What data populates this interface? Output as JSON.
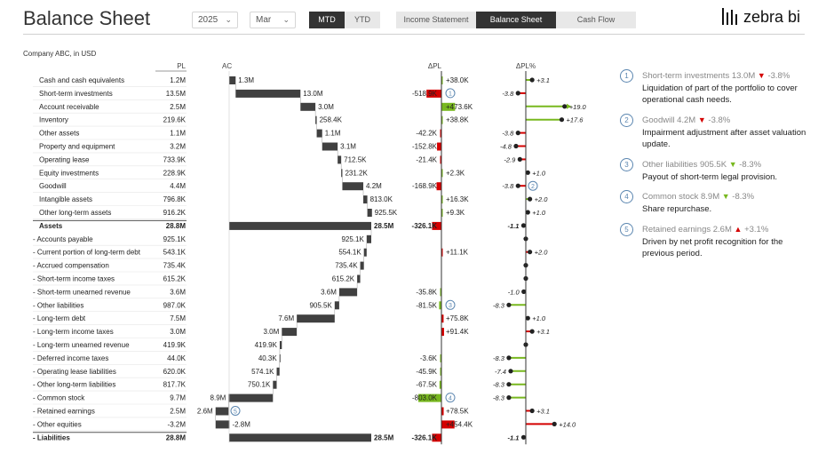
{
  "header": {
    "title": "Balance Sheet",
    "year": "2025",
    "month": "Mar",
    "period_buttons": [
      "MTD",
      "YTD"
    ],
    "period_active": "MTD",
    "report_tabs": [
      "Income Statement",
      "Balance Sheet",
      "Cash Flow"
    ],
    "report_active": "Balance Sheet",
    "logo_text": "zebra bi"
  },
  "subtitle": "Company ABC, in USD",
  "colors": {
    "bar": "#404040",
    "positive": "#78b81f",
    "negative": "#d40000",
    "comment": "#5b86b0"
  },
  "chart_data": {
    "type": "table",
    "columns": [
      "PL",
      "AC",
      "ΔPL",
      "ΔPL%"
    ],
    "rows": [
      {
        "label": "Cash and cash equivalents",
        "pl": "1.2M",
        "ac": "1.3M",
        "ac_value": 1.3,
        "delta": "+38.0K",
        "delta_value": 38.0,
        "pct": "+3.1",
        "pct_value": 3.1,
        "bold": false,
        "marker": ""
      },
      {
        "label": "Short-term investments",
        "pl": "13.5M",
        "ac": "13.0M",
        "ac_value": 13.0,
        "delta": "-518.9K",
        "delta_value": -518.9,
        "pct": "-3.8",
        "pct_value": -3.8,
        "bold": false,
        "marker": "1"
      },
      {
        "label": "Account receivable",
        "pl": "2.5M",
        "ac": "3.0M",
        "ac_value": 3.0,
        "delta": "+473.6K",
        "delta_value": 473.6,
        "pct": "+19.0",
        "pct_value": 19.0,
        "bold": false,
        "marker": ""
      },
      {
        "label": "Inventory",
        "pl": "219.6K",
        "ac": "258.4K",
        "ac_value": 0.2584,
        "delta": "+38.8K",
        "delta_value": 38.8,
        "pct": "+17.6",
        "pct_value": 17.6,
        "bold": false,
        "marker": ""
      },
      {
        "label": "Other assets",
        "pl": "1.1M",
        "ac": "1.1M",
        "ac_value": 1.1,
        "delta": "-42.2K",
        "delta_value": -42.2,
        "pct": "-3.8",
        "pct_value": -3.8,
        "bold": false,
        "marker": ""
      },
      {
        "label": "Property and equipment",
        "pl": "3.2M",
        "ac": "3.1M",
        "ac_value": 3.1,
        "delta": "-152.8K",
        "delta_value": -152.8,
        "pct": "-4.8",
        "pct_value": -4.8,
        "bold": false,
        "marker": ""
      },
      {
        "label": "Operating lease",
        "pl": "733.9K",
        "ac": "712.5K",
        "ac_value": 0.7125,
        "delta": "-21.4K",
        "delta_value": -21.4,
        "pct": "-2.9",
        "pct_value": -2.9,
        "bold": false,
        "marker": ""
      },
      {
        "label": "Equity investments",
        "pl": "228.9K",
        "ac": "231.2K",
        "ac_value": 0.2312,
        "delta": "+2.3K",
        "delta_value": 2.3,
        "pct": "+1.0",
        "pct_value": 1.0,
        "bold": false,
        "marker": ""
      },
      {
        "label": "Goodwill",
        "pl": "4.4M",
        "ac": "4.2M",
        "ac_value": 4.2,
        "delta": "-168.9K",
        "delta_value": -168.9,
        "pct": "-3.8",
        "pct_value": -3.8,
        "bold": false,
        "marker": "2"
      },
      {
        "label": "Intangible assets",
        "pl": "796.8K",
        "ac": "813.0K",
        "ac_value": 0.813,
        "delta": "+16.3K",
        "delta_value": 16.3,
        "pct": "+2.0",
        "pct_value": 2.0,
        "bold": false,
        "marker": ""
      },
      {
        "label": "Other long-term assets",
        "pl": "916.2K",
        "ac": "925.5K",
        "ac_value": 0.9255,
        "delta": "+9.3K",
        "delta_value": 9.3,
        "pct": "+1.0",
        "pct_value": 1.0,
        "bold": false,
        "marker": ""
      },
      {
        "label": "Assets",
        "pl": "28.8M",
        "ac": "28.5M",
        "ac_value": 28.5,
        "delta": "-326.1K",
        "delta_value": -326.1,
        "pct": "-1.1",
        "pct_value": -1.1,
        "bold": true,
        "marker": ""
      },
      {
        "label": "- Accounts payable",
        "pl": "925.1K",
        "ac": "925.1K",
        "ac_value": 0.9251,
        "delta": "",
        "delta_value": 0,
        "pct": "",
        "pct_value": 0,
        "bold": false,
        "marker": ""
      },
      {
        "label": "- Current portion of long-term debt",
        "pl": "543.1K",
        "ac": "554.1K",
        "ac_value": 0.5541,
        "delta": "+11.1K",
        "delta_value": 11.1,
        "pct": "+2.0",
        "pct_value": 2.0,
        "bold": false,
        "marker": ""
      },
      {
        "label": "- Accrued compensation",
        "pl": "735.4K",
        "ac": "735.4K",
        "ac_value": 0.7354,
        "delta": "",
        "delta_value": 0,
        "pct": "",
        "pct_value": 0,
        "bold": false,
        "marker": ""
      },
      {
        "label": "- Short-term income taxes",
        "pl": "615.2K",
        "ac": "615.2K",
        "ac_value": 0.6152,
        "delta": "",
        "delta_value": 0,
        "pct": "",
        "pct_value": 0,
        "bold": false,
        "marker": ""
      },
      {
        "label": "- Short-term unearned revenue",
        "pl": "3.6M",
        "ac": "3.6M",
        "ac_value": 3.6,
        "delta": "-35.8K",
        "delta_value": -35.8,
        "pct": "-1.0",
        "pct_value": -1.0,
        "bold": false,
        "marker": ""
      },
      {
        "label": "- Other liabilities",
        "pl": "987.0K",
        "ac": "905.5K",
        "ac_value": 0.9055,
        "delta": "-81.5K",
        "delta_value": -81.5,
        "pct": "-8.3",
        "pct_value": -8.3,
        "bold": false,
        "marker": "3"
      },
      {
        "label": "- Long-term debt",
        "pl": "7.5M",
        "ac": "7.6M",
        "ac_value": 7.6,
        "delta": "+75.8K",
        "delta_value": 75.8,
        "pct": "+1.0",
        "pct_value": 1.0,
        "bold": false,
        "marker": ""
      },
      {
        "label": "- Long-term income taxes",
        "pl": "3.0M",
        "ac": "3.0M",
        "ac_value": 3.0,
        "delta": "+91.4K",
        "delta_value": 91.4,
        "pct": "+3.1",
        "pct_value": 3.1,
        "bold": false,
        "marker": ""
      },
      {
        "label": "- Long-term unearned revenue",
        "pl": "419.9K",
        "ac": "419.9K",
        "ac_value": 0.4199,
        "delta": "",
        "delta_value": 0,
        "pct": "",
        "pct_value": 0,
        "bold": false,
        "marker": ""
      },
      {
        "label": "- Deferred income taxes",
        "pl": "44.0K",
        "ac": "40.3K",
        "ac_value": 0.0403,
        "delta": "-3.6K",
        "delta_value": -3.6,
        "pct": "-8.3",
        "pct_value": -8.3,
        "bold": false,
        "marker": ""
      },
      {
        "label": "- Operating lease liabilities",
        "pl": "620.0K",
        "ac": "574.1K",
        "ac_value": 0.5741,
        "delta": "-45.9K",
        "delta_value": -45.9,
        "pct": "-7.4",
        "pct_value": -7.4,
        "bold": false,
        "marker": ""
      },
      {
        "label": "- Other long-term liabilities",
        "pl": "817.7K",
        "ac": "750.1K",
        "ac_value": 0.7501,
        "delta": "-67.5K",
        "delta_value": -67.5,
        "pct": "-8.3",
        "pct_value": -8.3,
        "bold": false,
        "marker": ""
      },
      {
        "label": "- Common stock",
        "pl": "9.7M",
        "ac": "8.9M",
        "ac_value": 8.9,
        "delta": "-803.0K",
        "delta_value": -803.0,
        "pct": "-8.3",
        "pct_value": -8.3,
        "bold": false,
        "marker": "4"
      },
      {
        "label": "- Retained earnings",
        "pl": "2.5M",
        "ac": "2.6M",
        "ac_value": 2.6,
        "delta": "+78.5K",
        "delta_value": 78.5,
        "pct": "+3.1",
        "pct_value": 3.1,
        "bold": false,
        "marker": "5"
      },
      {
        "label": "- Other equities",
        "pl": "-3.2M",
        "ac": "-2.8M",
        "ac_value": -2.8,
        "delta": "+454.4K",
        "delta_value": 454.4,
        "pct": "+14.0",
        "pct_value": 14.0,
        "bold": false,
        "marker": ""
      },
      {
        "label": "- Liabilities",
        "pl": "28.8M",
        "ac": "28.5M",
        "ac_value": 28.5,
        "delta": "-326.1K",
        "delta_value": -326.1,
        "pct": "-1.1",
        "pct_value": -1.1,
        "bold": true,
        "marker": ""
      }
    ]
  },
  "comments": [
    {
      "num": "1",
      "title": "Short-term investments 13.0M",
      "dir": "down",
      "dir_color": "red",
      "change": "-3.8%",
      "body": "Liquidation of part of the portfolio to cover operational cash needs."
    },
    {
      "num": "2",
      "title": "Goodwill 4.2M",
      "dir": "down",
      "dir_color": "red",
      "change": "-3.8%",
      "body": "Impairment adjustment after asset valuation update."
    },
    {
      "num": "3",
      "title": "Other liabilities 905.5K",
      "dir": "down",
      "dir_color": "green",
      "change": "-8.3%",
      "body": "Payout of short-term legal provision."
    },
    {
      "num": "4",
      "title": "Common stock 8.9M",
      "dir": "down",
      "dir_color": "green",
      "change": "-8.3%",
      "body": "Share repurchase."
    },
    {
      "num": "5",
      "title": "Retained earnings 2.6M",
      "dir": "up",
      "dir_color": "red",
      "change": "+3.1%",
      "body": "Driven by net profit recognition for the previous period."
    }
  ]
}
